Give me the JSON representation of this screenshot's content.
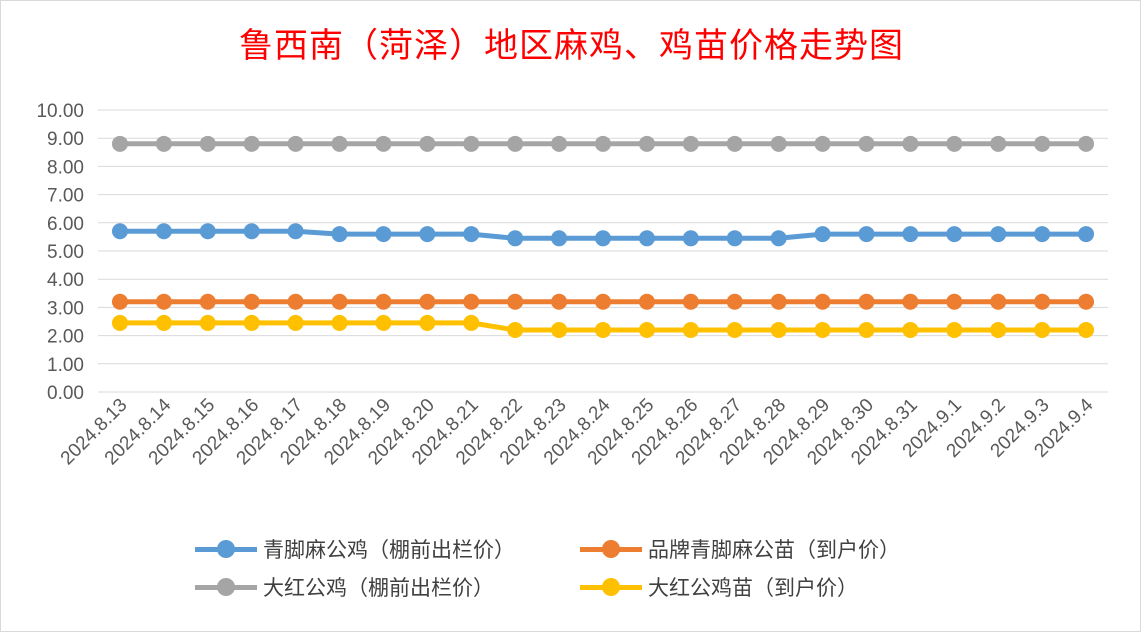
{
  "chart_data": {
    "type": "line",
    "title": "鲁西南（菏泽）地区麻鸡、鸡苗价格走势图",
    "xlabel": "",
    "ylabel": "",
    "ylim": [
      0,
      10
    ],
    "y_ticks": [
      "10.00",
      "9.00",
      "8.00",
      "7.00",
      "6.00",
      "5.00",
      "4.00",
      "3.00",
      "2.00",
      "1.00",
      "0.00"
    ],
    "grid": true,
    "legend_position": "bottom",
    "x": [
      "2024.8.13",
      "2024.8.14",
      "2024.8.15",
      "2024.8.16",
      "2024.8.17",
      "2024.8.18",
      "2024.8.19",
      "2024.8.20",
      "2024.8.21",
      "2024.8.22",
      "2024.8.23",
      "2024.8.24",
      "2024.8.25",
      "2024.8.26",
      "2024.8.27",
      "2024.8.28",
      "2024.8.29",
      "2024.8.30",
      "2024.8.31",
      "2024.9.1",
      "2024.9.2",
      "2024.9.3",
      "2024.9.4"
    ],
    "series": [
      {
        "name": "青脚麻公鸡（棚前出栏价）",
        "color": "#5b9bd5",
        "values": [
          5.7,
          5.7,
          5.7,
          5.7,
          5.7,
          5.6,
          5.6,
          5.6,
          5.6,
          5.45,
          5.45,
          5.45,
          5.45,
          5.45,
          5.45,
          5.45,
          5.6,
          5.6,
          5.6,
          5.6,
          5.6,
          5.6,
          5.6
        ]
      },
      {
        "name": "品牌青脚麻公苗（到户价）",
        "color": "#ed7d31",
        "values": [
          3.2,
          3.2,
          3.2,
          3.2,
          3.2,
          3.2,
          3.2,
          3.2,
          3.2,
          3.2,
          3.2,
          3.2,
          3.2,
          3.2,
          3.2,
          3.2,
          3.2,
          3.2,
          3.2,
          3.2,
          3.2,
          3.2,
          3.2
        ]
      },
      {
        "name": "大红公鸡（棚前出栏价）",
        "color": "#a5a5a5",
        "values": [
          8.8,
          8.8,
          8.8,
          8.8,
          8.8,
          8.8,
          8.8,
          8.8,
          8.8,
          8.8,
          8.8,
          8.8,
          8.8,
          8.8,
          8.8,
          8.8,
          8.8,
          8.8,
          8.8,
          8.8,
          8.8,
          8.8,
          8.8
        ]
      },
      {
        "name": "大红公鸡苗（到户价）",
        "color": "#ffc000",
        "values": [
          2.45,
          2.45,
          2.45,
          2.45,
          2.45,
          2.45,
          2.45,
          2.45,
          2.45,
          2.2,
          2.2,
          2.2,
          2.2,
          2.2,
          2.2,
          2.2,
          2.2,
          2.2,
          2.2,
          2.2,
          2.2,
          2.2,
          2.2
        ]
      }
    ]
  }
}
